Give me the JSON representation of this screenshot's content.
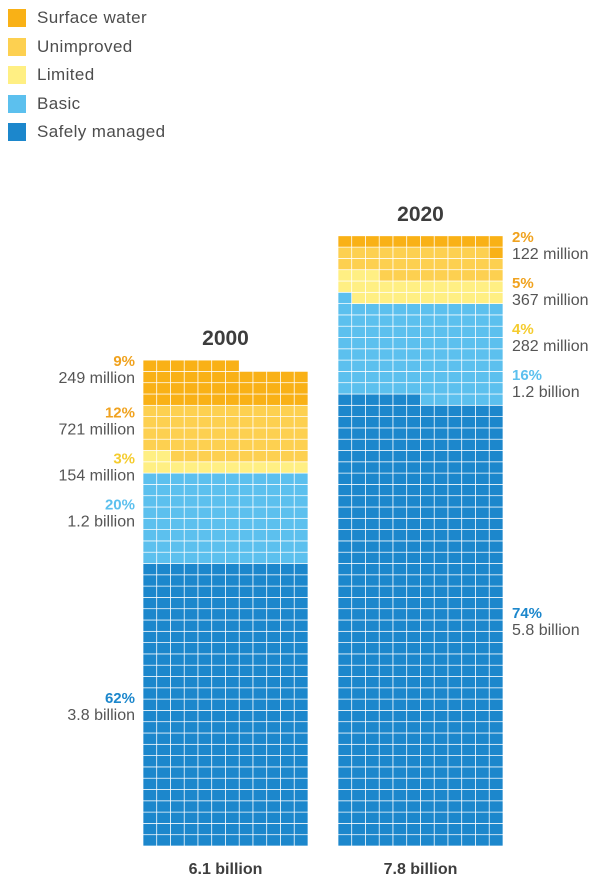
{
  "legend": [
    {
      "label": "Surface water",
      "color": "#F9B116"
    },
    {
      "label": "Unimproved",
      "color": "#FDD050"
    },
    {
      "label": "Limited",
      "color": "#FFEF83"
    },
    {
      "label": "Basic",
      "color": "#5CC0EE"
    },
    {
      "label": "Safely managed",
      "color": "#1C87CC"
    }
  ],
  "chart_data": {
    "type": "waffle",
    "categories": [
      "Surface water",
      "Unimproved",
      "Limited",
      "Basic",
      "Safely managed"
    ],
    "colors": [
      "#F9B116",
      "#FDD050",
      "#FFEF83",
      "#5CC0EE",
      "#1C87CC"
    ],
    "label_colors": [
      "#F0A21E",
      "#F0A21E",
      "#F5CC2E",
      "#5CC0EE",
      "#1C87CC"
    ],
    "grid": true,
    "series": [
      {
        "name": "2000",
        "total": "6.1 billion",
        "percents": [
          "9%",
          "12%",
          "3%",
          "20%",
          "62%"
        ],
        "amounts": [
          "249 million",
          "721 million",
          "154 million",
          "1.2 billion",
          "3.8 billion"
        ],
        "values": [
          9,
          12,
          3,
          20,
          62
        ],
        "populations_billion": [
          0.249,
          0.721,
          0.154,
          1.2,
          3.8
        ]
      },
      {
        "name": "2020",
        "total": "7.8 billion",
        "percents": [
          "2%",
          "5%",
          "4%",
          "16%",
          "74%"
        ],
        "amounts": [
          "122 million",
          "367 million",
          "282 million",
          "1.2 billion",
          "5.8 billion"
        ],
        "values": [
          2,
          5,
          4,
          16,
          74
        ],
        "populations_billion": [
          0.122,
          0.367,
          0.282,
          1.2,
          5.8
        ]
      }
    ]
  }
}
